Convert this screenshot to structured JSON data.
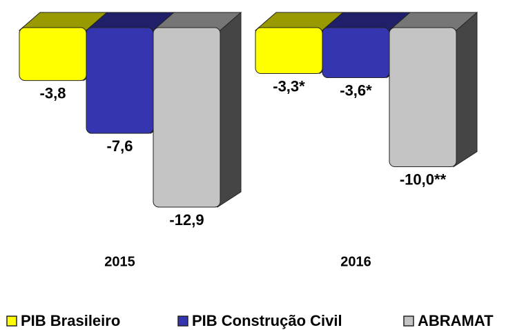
{
  "chart_data": {
    "type": "bar3d",
    "categories": [
      "2015",
      "2016"
    ],
    "series": [
      {
        "name": "PIB Brasileiro",
        "color": "#ffff00",
        "values": [
          -3.8,
          -3.3
        ],
        "value_labels": [
          "-3,8",
          "-3,3*"
        ]
      },
      {
        "name": "PIB Construção Civil",
        "color": "#3535b0",
        "values": [
          -7.6,
          -3.6
        ],
        "value_labels": [
          "-7,6",
          "-3,6*"
        ]
      },
      {
        "name": "ABRAMAT",
        "color": "#c4c4c4",
        "values": [
          -12.9,
          -10.0
        ],
        "value_labels": [
          "-12,9",
          "-10,0**"
        ]
      }
    ],
    "legend": "bottom"
  }
}
